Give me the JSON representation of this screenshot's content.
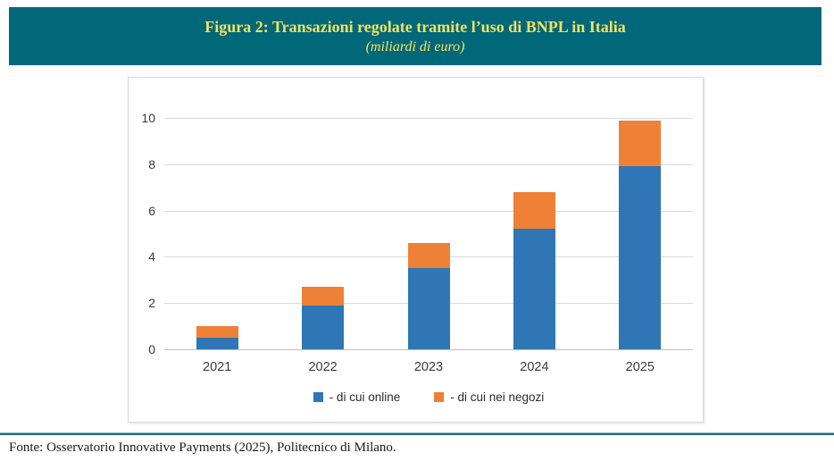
{
  "header": {
    "title": "Figura 2: Transazioni regolate tramite l’uso di BNPL in Italia",
    "subtitle": "(miliardi di euro)",
    "background_color": "#01687A",
    "text_color": "#F3E35F"
  },
  "chart_data": {
    "type": "bar",
    "stacked": true,
    "title": "Figura 2: Transazioni regolate tramite l’uso di BNPL in Italia (miliardi di euro)",
    "categories": [
      "2021",
      "2022",
      "2023",
      "2024",
      "2025"
    ],
    "series": [
      {
        "name": "- di cui online",
        "color": "#2E76B5",
        "values": [
          0.5,
          1.9,
          3.5,
          5.2,
          7.9
        ]
      },
      {
        "name": "- di cui nei negozi",
        "color": "#EE8136",
        "values": [
          0.5,
          0.8,
          1.1,
          1.6,
          2.0
        ]
      }
    ],
    "totals": [
      1.0,
      2.7,
      4.6,
      6.8,
      9.9
    ],
    "xlabel": "",
    "ylabel": "",
    "ylim": [
      0,
      10
    ],
    "yticks": [
      0,
      2,
      4,
      6,
      8,
      10
    ],
    "grid": true,
    "gridline_color": "#D9D9D9",
    "legend_position": "bottom"
  },
  "footer": {
    "source": "Fonte: Osservatorio Innovative Payments (2025), Politecnico di Milano."
  }
}
